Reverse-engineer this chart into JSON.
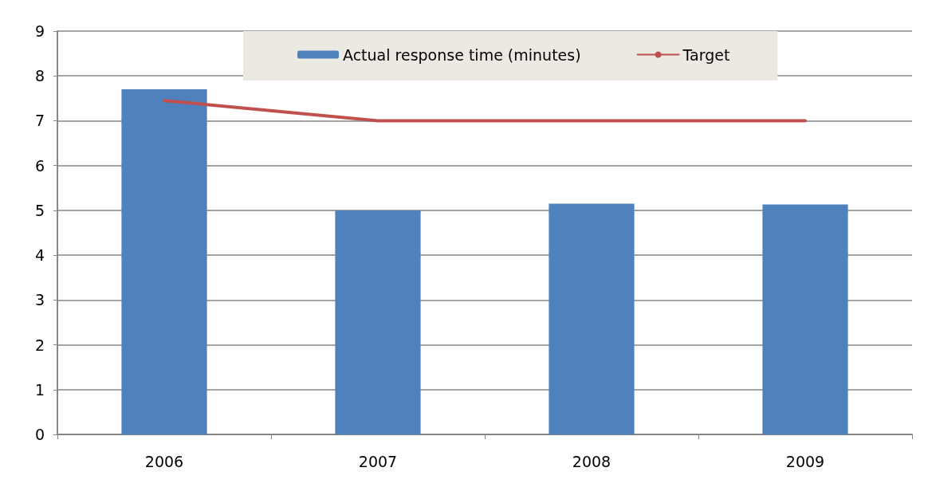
{
  "chart_data": {
    "type": "bar",
    "categories": [
      "2006",
      "2007",
      "2008",
      "2009"
    ],
    "series": [
      {
        "name": "Actual response time (minutes)",
        "color": "#4f81bd",
        "values": [
          7.7,
          5.0,
          5.15,
          5.13
        ]
      },
      {
        "name": "Target",
        "type": "line",
        "color": "#c0504d",
        "values": [
          7.45,
          7.0,
          7.0,
          7.0
        ]
      }
    ],
    "ylim": [
      0,
      9
    ],
    "yticks": [
      0,
      1,
      2,
      3,
      4,
      5,
      6,
      7,
      8,
      9
    ],
    "grid": "y",
    "legend": "top",
    "marker": "none"
  }
}
